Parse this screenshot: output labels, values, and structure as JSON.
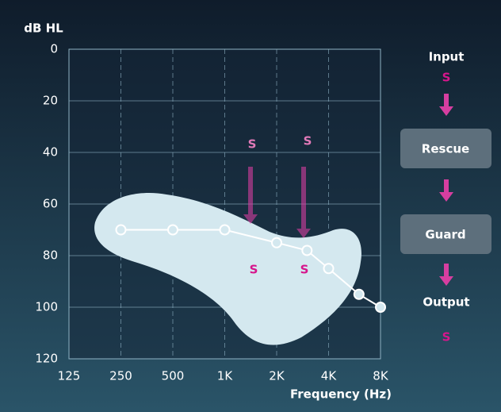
{
  "chart_data": {
    "type": "line",
    "y_label": "dB HL",
    "x_label": "Frequency (Hz)",
    "x": [
      250,
      500,
      1000,
      2000,
      3000,
      4000,
      6000,
      8000
    ],
    "series": [
      {
        "color": "#ffffff",
        "values": [
          70,
          70,
          70,
          75,
          78,
          85,
          95,
          100
        ]
      }
    ],
    "xlim": [
      125,
      8000
    ],
    "x_log": true,
    "xticks": [
      125,
      250,
      500,
      {
        "value": 1000,
        "label": "1K"
      },
      {
        "value": 2000,
        "label": "2K"
      },
      {
        "value": 4000,
        "label": "4K"
      },
      {
        "value": 8000,
        "label": "8K"
      }
    ],
    "ylim": [
      0,
      120
    ],
    "y_inverted": true,
    "yticks": [
      0,
      20,
      40,
      60,
      80,
      100,
      120
    ],
    "grid": true,
    "annotations": [
      "S",
      "S",
      "S",
      "S"
    ]
  },
  "diagram": {
    "input": "Input",
    "input_symbol": "S",
    "steps": [
      "Rescue",
      "Guard"
    ],
    "output": "Output",
    "output_symbol": "S"
  }
}
